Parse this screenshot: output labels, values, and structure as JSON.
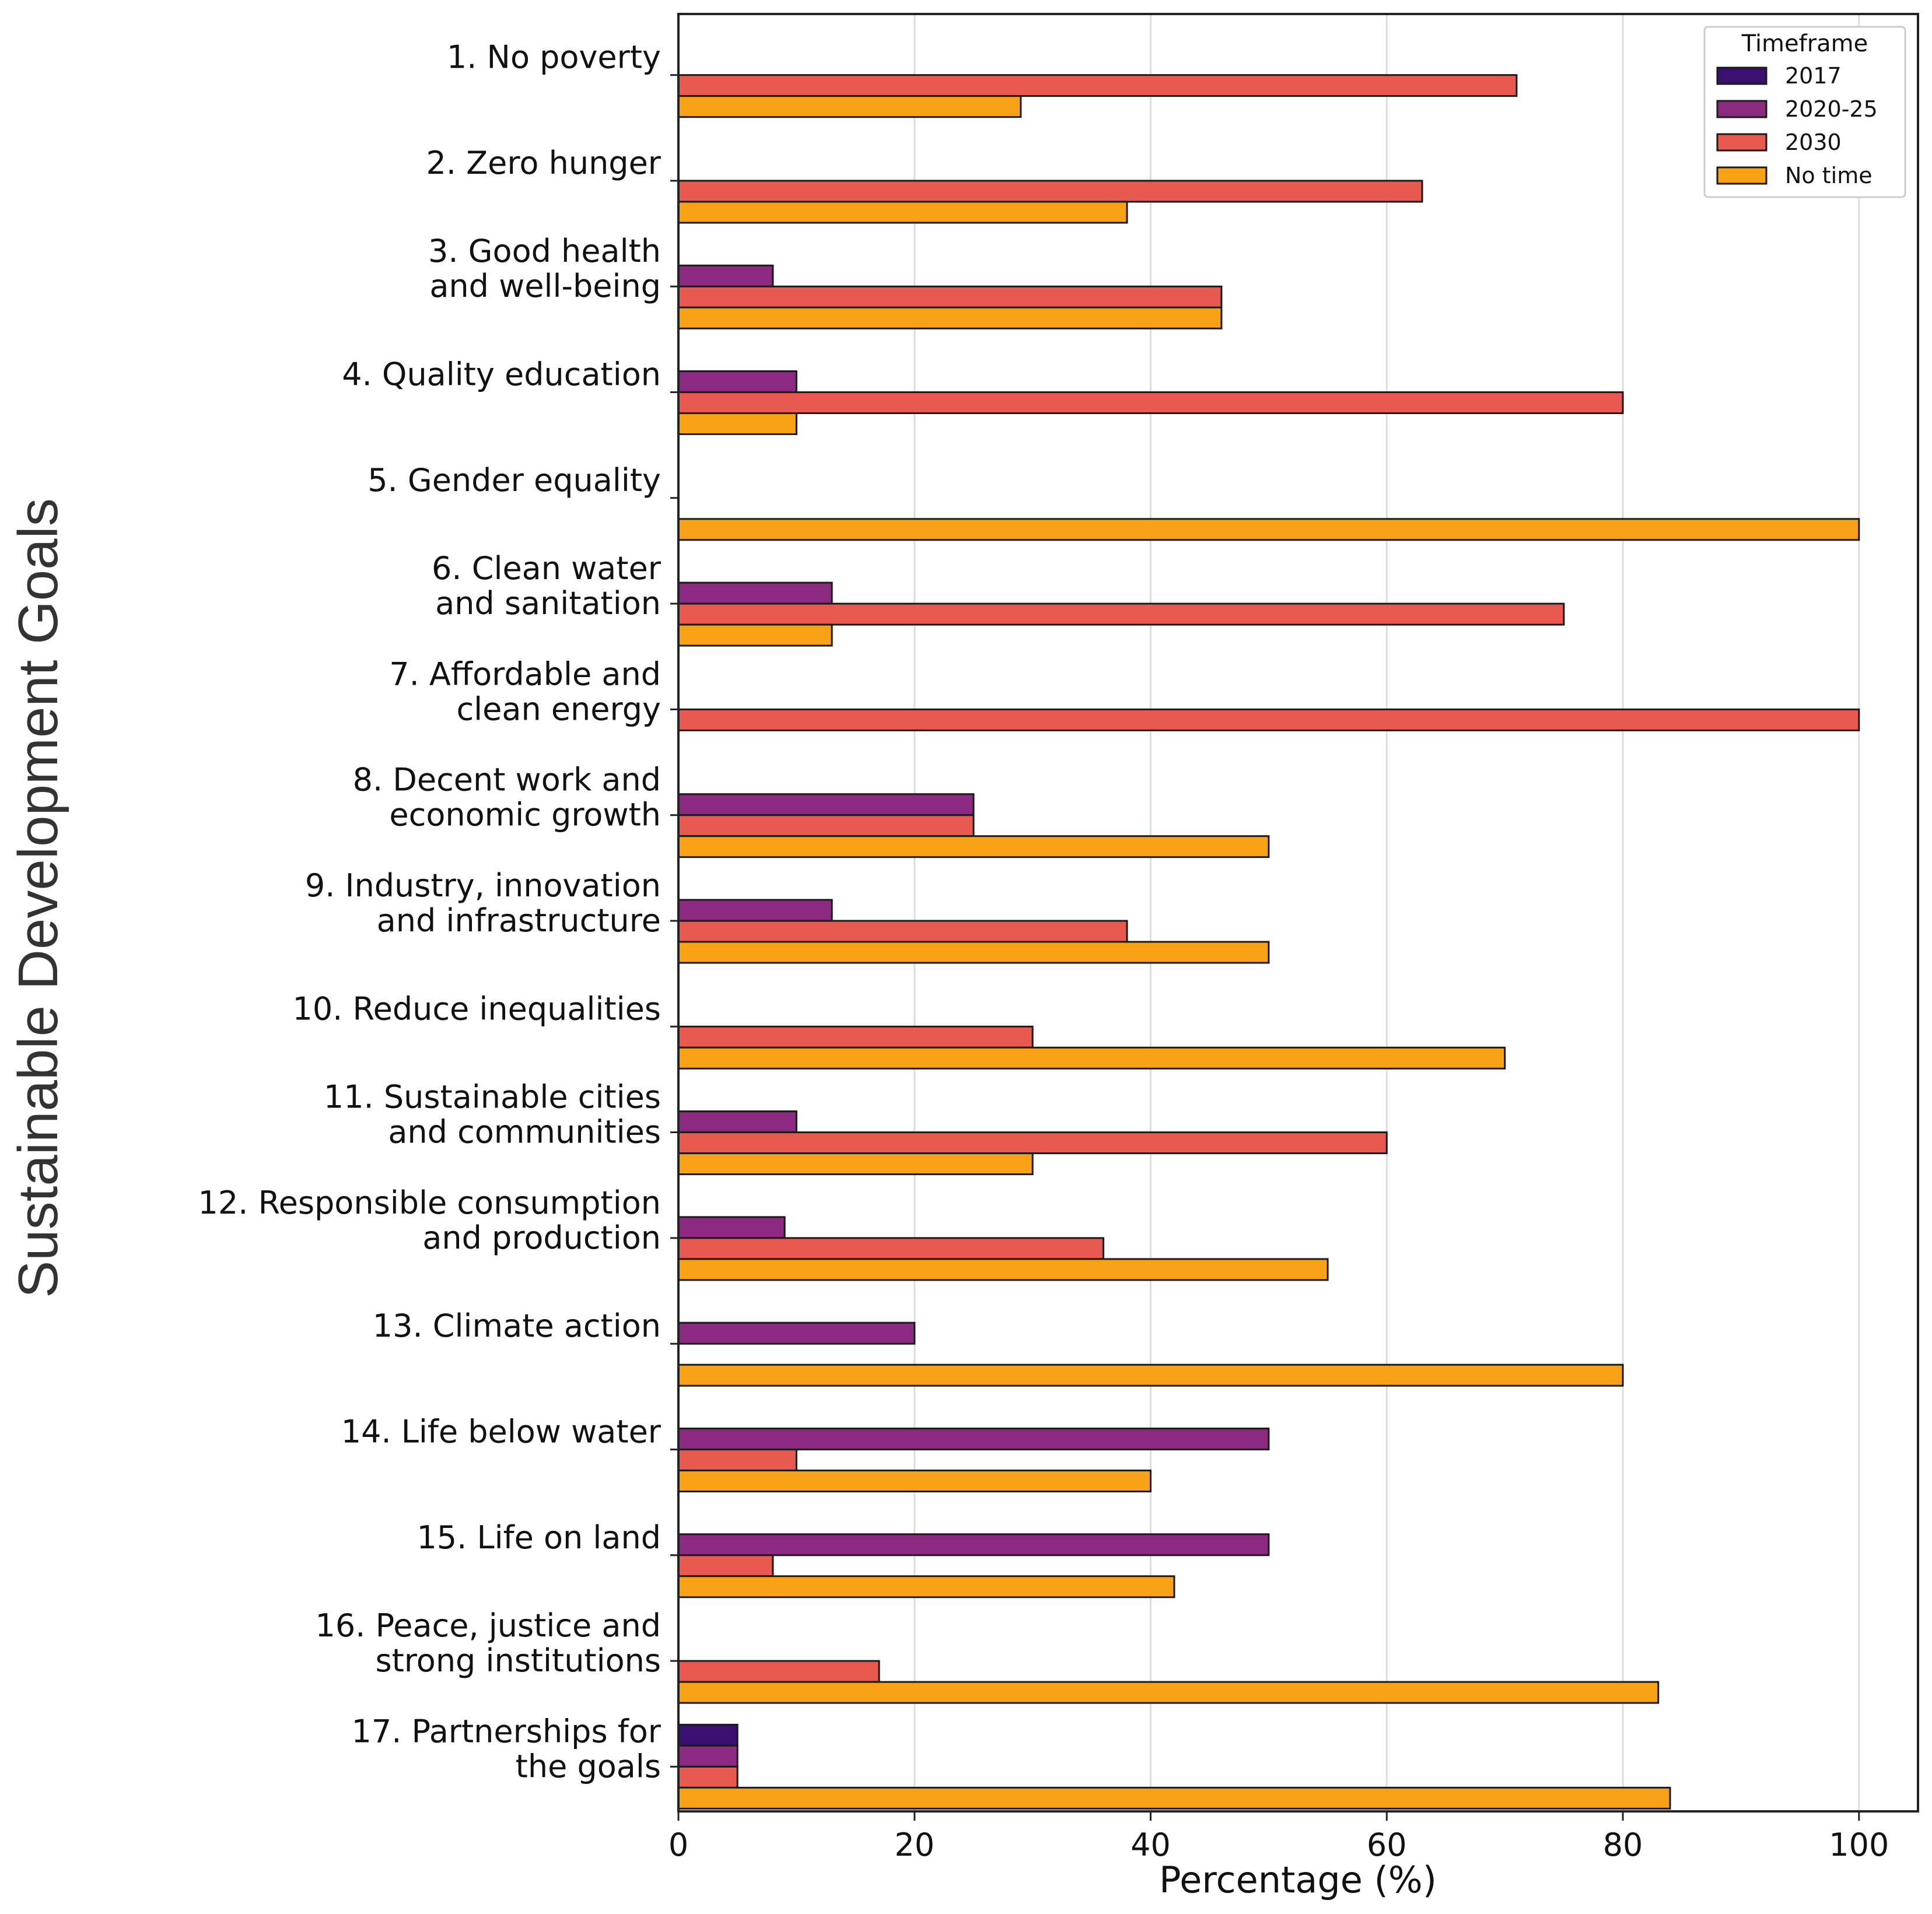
{
  "chart_data": {
    "type": "bar",
    "orientation": "horizontal",
    "xlabel": "Percentage (%)",
    "ylabel": "Sustainable Development Goals",
    "xlim": [
      0,
      105
    ],
    "xticks": [
      0,
      20,
      40,
      60,
      80,
      100
    ],
    "grid": "vertical",
    "legend": {
      "title": "Timeframe",
      "placement": "top-right"
    },
    "categories": [
      [
        "1. No poverty"
      ],
      [
        "2. Zero hunger"
      ],
      [
        "3. Good health",
        "and well-being"
      ],
      [
        "4. Quality education"
      ],
      [
        "5. Gender equality"
      ],
      [
        "6. Clean water",
        "and sanitation"
      ],
      [
        "7. Affordable and",
        "clean energy"
      ],
      [
        "8. Decent work and",
        "economic growth"
      ],
      [
        "9. Industry, innovation",
        "and infrastructure"
      ],
      [
        "10. Reduce inequalities"
      ],
      [
        "11. Sustainable cities",
        "and communities"
      ],
      [
        "12. Responsible consumption",
        "and production"
      ],
      [
        "13. Climate action"
      ],
      [
        "14. Life below water"
      ],
      [
        "15. Life on land"
      ],
      [
        "16. Peace, justice and",
        "strong institutions"
      ],
      [
        "17. Partnerships for",
        "the goals"
      ]
    ],
    "series": [
      {
        "name": "2017",
        "color": "#3b0f70",
        "values": [
          0,
          0,
          0,
          0,
          0,
          0,
          0,
          0,
          0,
          0,
          0,
          0,
          0,
          0,
          0,
          0,
          5
        ]
      },
      {
        "name": "2020-25",
        "color": "#8c2981",
        "values": [
          0,
          0,
          8,
          10,
          0,
          13,
          0,
          25,
          13,
          0,
          10,
          9,
          20,
          50,
          50,
          0,
          5
        ]
      },
      {
        "name": "2030",
        "color": "#e8594f",
        "values": [
          71,
          63,
          46,
          80,
          0,
          75,
          100,
          25,
          38,
          30,
          60,
          36,
          0,
          10,
          8,
          17,
          5
        ]
      },
      {
        "name": "No time",
        "color": "#f9a114",
        "values": [
          29,
          38,
          46,
          10,
          100,
          13,
          0,
          50,
          50,
          70,
          30,
          55,
          80,
          40,
          42,
          83,
          84
        ]
      }
    ]
  }
}
